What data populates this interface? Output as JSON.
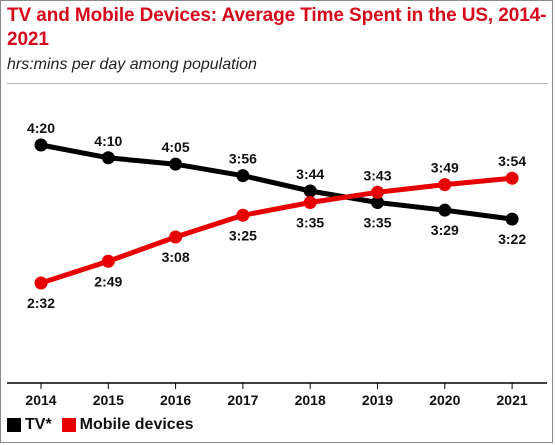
{
  "header": {
    "title": "TV and Mobile Devices: Average Time Spent in the US, 2014-2021",
    "subtitle": "hrs:mins per day among population"
  },
  "legend": [
    {
      "label": "TV*",
      "color": "#000000"
    },
    {
      "label": "Mobile devices",
      "color": "#e60000"
    }
  ],
  "chart_data": {
    "type": "line",
    "title": "TV and Mobile Devices: Average Time Spent in the US, 2014-2021",
    "subtitle": "hrs:mins per day among population",
    "categories": [
      "2014",
      "2015",
      "2016",
      "2017",
      "2018",
      "2019",
      "2020",
      "2021"
    ],
    "series": [
      {
        "name": "TV*",
        "color": "#000000",
        "values": [
          260,
          250,
          245,
          236,
          224,
          215,
          209,
          202
        ],
        "labels": [
          "4:20",
          "4:10",
          "4:05",
          "3:56",
          "3:44",
          "3:35",
          "3:29",
          "3:22"
        ]
      },
      {
        "name": "Mobile devices",
        "color": "#e60000",
        "values": [
          152,
          169,
          188,
          205,
          215,
          223,
          229,
          234
        ],
        "labels": [
          "2:32",
          "2:49",
          "3:08",
          "3:25",
          "3:35",
          "3:43",
          "3:49",
          "3:54"
        ]
      }
    ],
    "ylim": [
      145,
      265
    ],
    "grid": false,
    "legend_position": "bottom-left"
  }
}
